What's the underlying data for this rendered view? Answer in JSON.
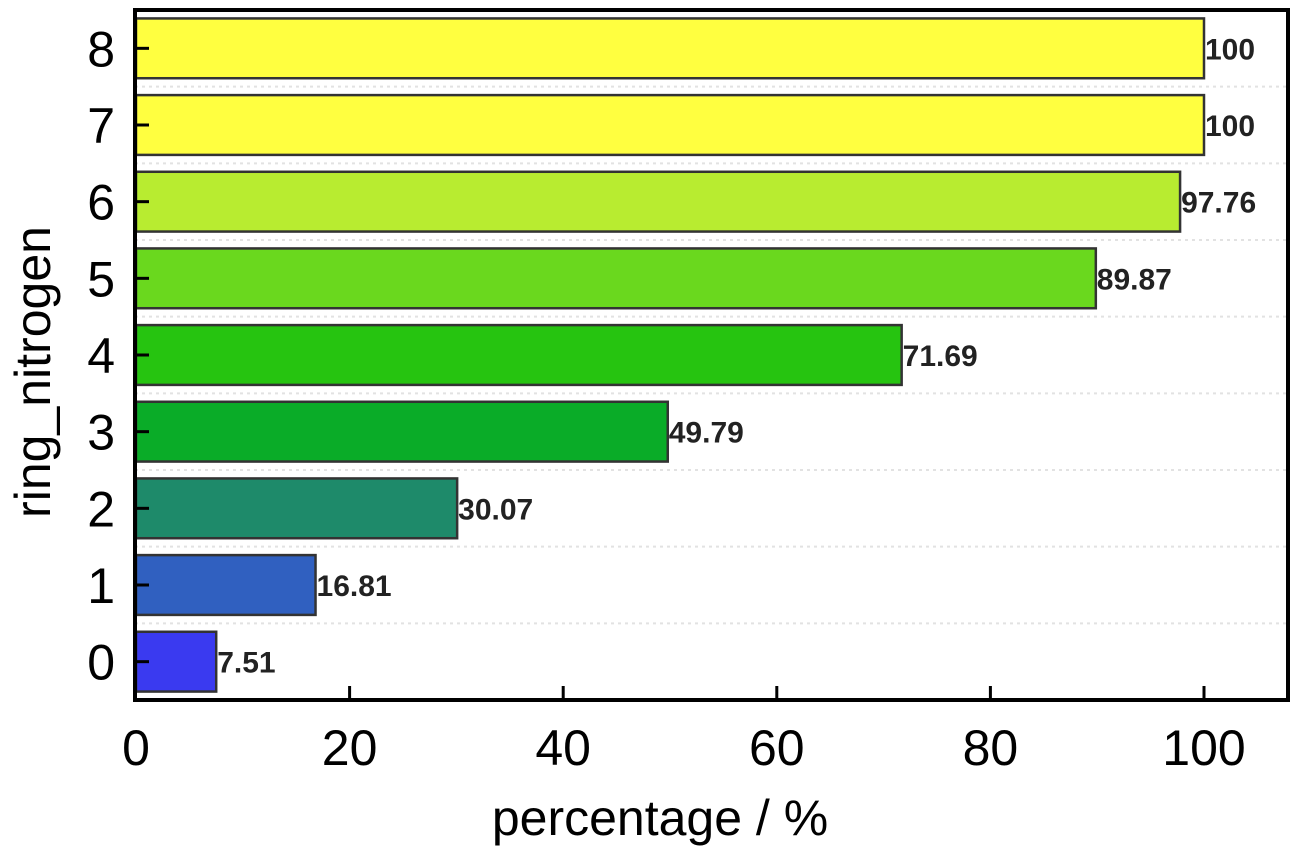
{
  "chart_data": {
    "type": "bar",
    "orientation": "horizontal",
    "categories": [
      "0",
      "1",
      "2",
      "3",
      "4",
      "5",
      "6",
      "7",
      "8"
    ],
    "values": [
      7.51,
      16.81,
      30.07,
      49.79,
      71.69,
      89.87,
      97.76,
      100,
      100
    ],
    "value_labels": [
      "7.51",
      "16.81",
      "30.07",
      "49.79",
      "71.69",
      "89.87",
      "97.76",
      "100",
      "100"
    ],
    "colors": [
      "#3a3af0",
      "#3060c0",
      "#1e8a6a",
      "#0aac28",
      "#26c410",
      "#6ad81e",
      "#b8ec30",
      "#ffff40",
      "#ffff40"
    ],
    "xlabel": "percentage / %",
    "ylabel": "ring_nitrogen",
    "xlim": [
      0,
      108
    ],
    "xticks": [
      "0",
      "20",
      "40",
      "60",
      "80",
      "100"
    ],
    "grid": true,
    "legend": "none"
  }
}
